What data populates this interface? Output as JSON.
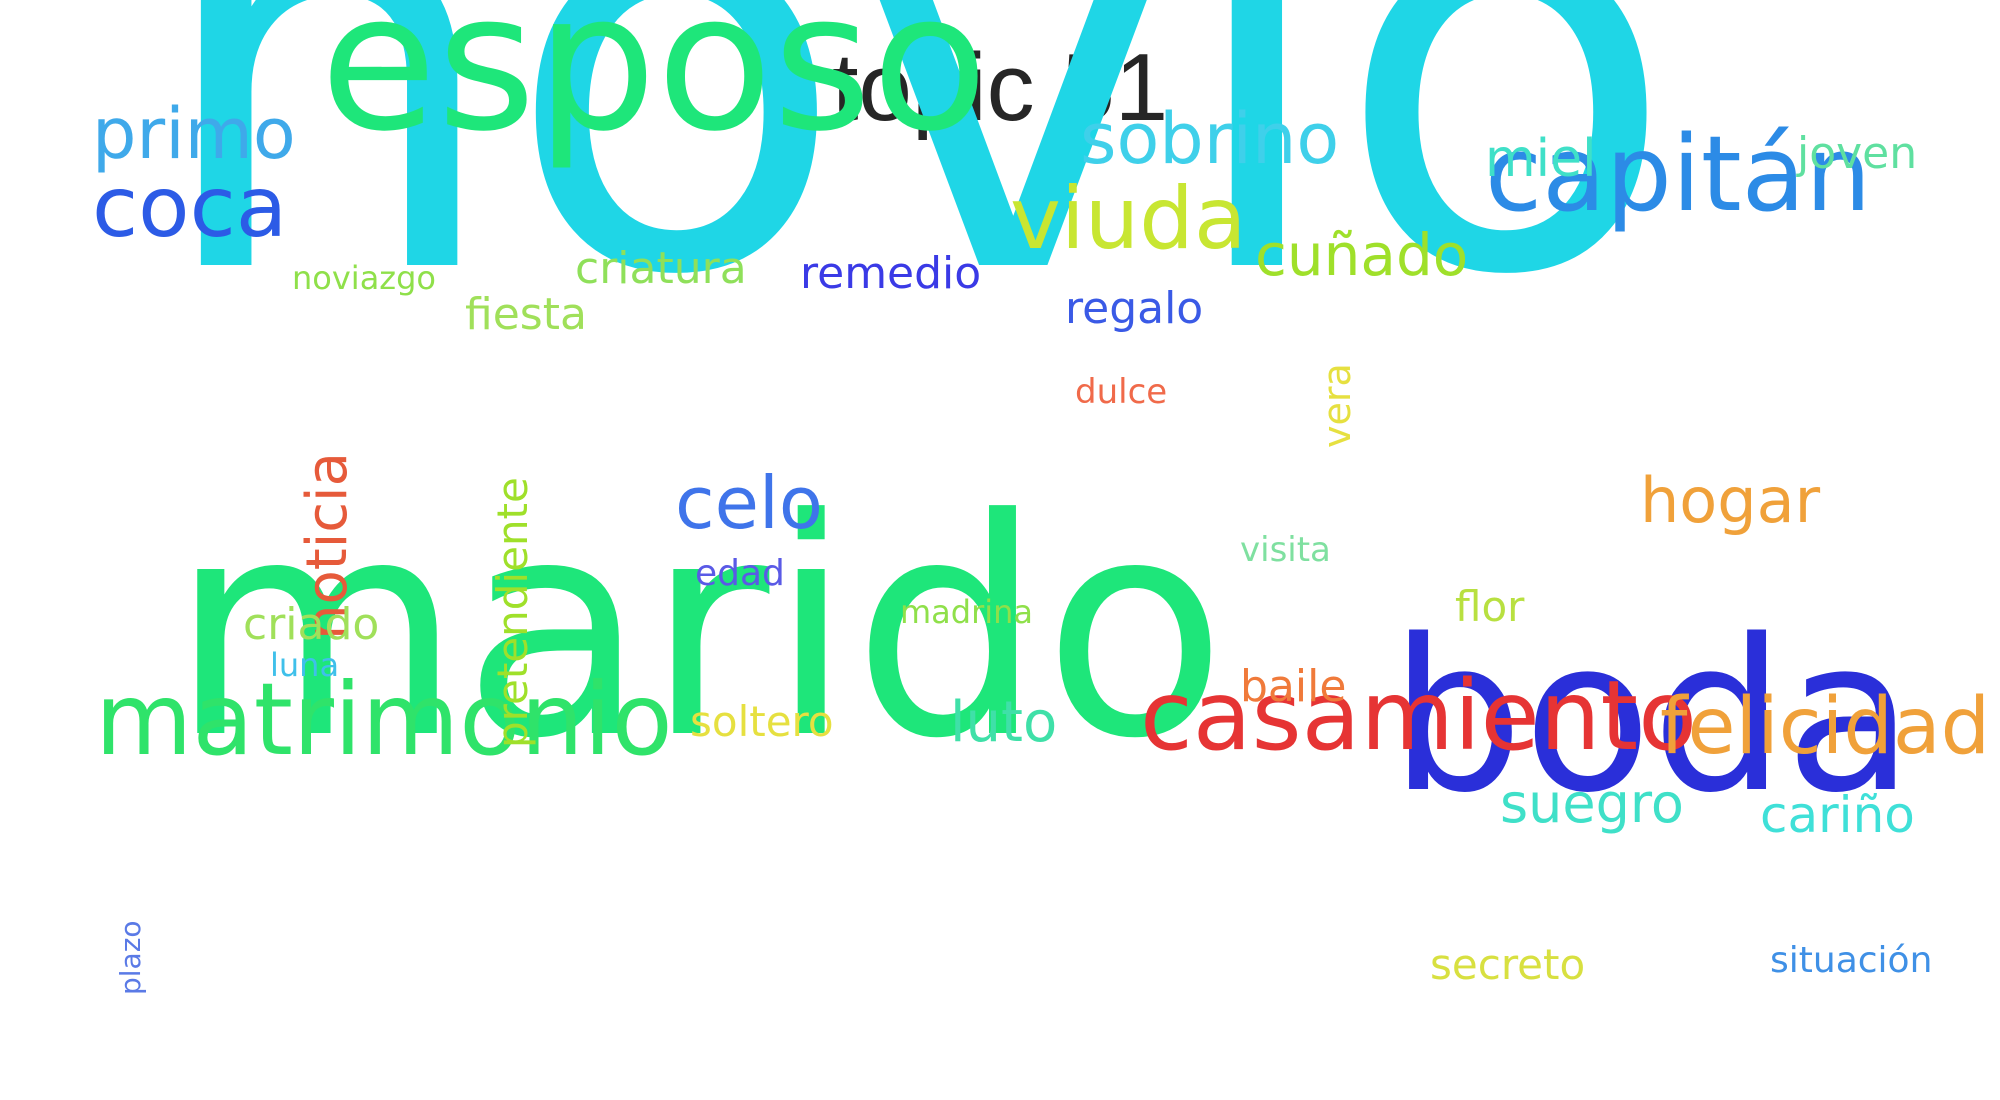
{
  "title": "topic 51",
  "words": [
    {
      "text": "novio",
      "color": "#1fd6e6",
      "weight": 1.0
    },
    {
      "text": "marido",
      "color": "#1ee67a",
      "weight": 0.78
    },
    {
      "text": "boda",
      "color": "#2a2fd9",
      "weight": 0.55
    },
    {
      "text": "esposo",
      "color": "#1ee67a",
      "weight": 0.5
    },
    {
      "text": "casamiento",
      "color": "#e63434",
      "weight": 0.3
    },
    {
      "text": "matrimonio",
      "color": "#2fe36a",
      "weight": 0.3
    },
    {
      "text": "capitán",
      "color": "#2c8be6",
      "weight": 0.28
    },
    {
      "text": "felicidad",
      "color": "#f0a13a",
      "weight": 0.22
    },
    {
      "text": "viuda",
      "color": "#c8e632",
      "weight": 0.22
    },
    {
      "text": "coca",
      "color": "#2c5be6",
      "weight": 0.2
    },
    {
      "text": "sobrino",
      "color": "#3fd0ea",
      "weight": 0.18
    },
    {
      "text": "primo",
      "color": "#3fa9ea",
      "weight": 0.18
    },
    {
      "text": "celo",
      "color": "#3f74ea",
      "weight": 0.18
    },
    {
      "text": "hogar",
      "color": "#f0a13a",
      "weight": 0.16
    },
    {
      "text": "noticia",
      "color": "#e65a3a",
      "weight": 0.15
    },
    {
      "text": "cuñado",
      "color": "#9fe02a",
      "weight": 0.15
    },
    {
      "text": "suegro",
      "color": "#3fe0c8",
      "weight": 0.14
    },
    {
      "text": "luto",
      "color": "#3fe0a8",
      "weight": 0.14
    },
    {
      "text": "pretendiente",
      "color": "#9fe02a",
      "weight": 0.13
    },
    {
      "text": "miel",
      "color": "#3fe0c8",
      "weight": 0.13
    },
    {
      "text": "cariño",
      "color": "#3fe0d8",
      "weight": 0.12
    },
    {
      "text": "remedio",
      "color": "#3a3ae6",
      "weight": 0.11
    },
    {
      "text": "criatura",
      "color": "#8fe05a",
      "weight": 0.11
    },
    {
      "text": "fiesta",
      "color": "#a0e05a",
      "weight": 0.11
    },
    {
      "text": "regalo",
      "color": "#3a5ae6",
      "weight": 0.11
    },
    {
      "text": "criado",
      "color": "#a0e05a",
      "weight": 0.11
    },
    {
      "text": "joven",
      "color": "#5fe0a0",
      "weight": 0.1
    },
    {
      "text": "baile",
      "color": "#f07a3a",
      "weight": 0.1
    },
    {
      "text": "flor",
      "color": "#b8e040",
      "weight": 0.1
    },
    {
      "text": "soltero",
      "color": "#e6e040",
      "weight": 0.1
    },
    {
      "text": "secreto",
      "color": "#d8e040",
      "weight": 0.1
    },
    {
      "text": "vera",
      "color": "#e6e040",
      "weight": 0.09
    },
    {
      "text": "edad",
      "color": "#5a5ae6",
      "weight": 0.08
    },
    {
      "text": "situación",
      "color": "#3f90e6",
      "weight": 0.08
    },
    {
      "text": "dulce",
      "color": "#f06a4a",
      "weight": 0.07
    },
    {
      "text": "visita",
      "color": "#7fe0a0",
      "weight": 0.07
    },
    {
      "text": "madrina",
      "color": "#8fe04a",
      "weight": 0.07
    },
    {
      "text": "luna",
      "color": "#3fc0ea",
      "weight": 0.07
    },
    {
      "text": "noviazgo",
      "color": "#8fe04a",
      "weight": 0.07
    },
    {
      "text": "plazo",
      "color": "#5a7ae6",
      "weight": 0.07
    }
  ]
}
